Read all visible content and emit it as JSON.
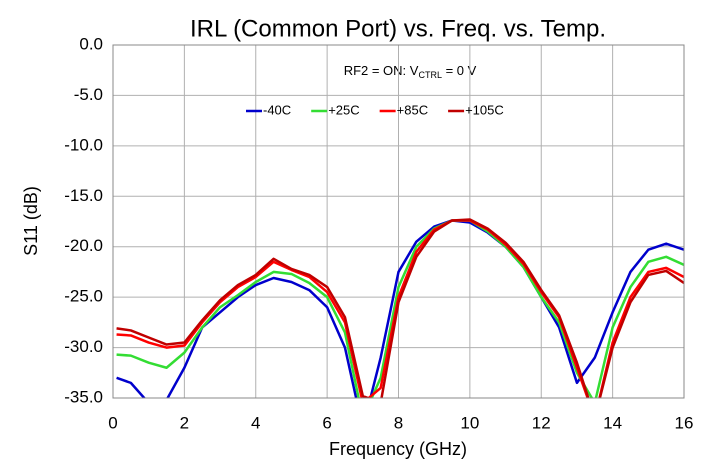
{
  "chart_data": {
    "type": "line",
    "title": "IRL (Common Port) vs. Freq. vs. Temp.",
    "annotation": {
      "text": "RF2 = ON: V",
      "sub": "CTRL",
      "after": " = 0 V"
    },
    "xlabel": "Frequency (GHz)",
    "ylabel": "S11 (dB)",
    "x": [
      0.1,
      0.5,
      1,
      1.5,
      2,
      2.5,
      3,
      3.5,
      4,
      4.5,
      5,
      5.5,
      6,
      6.5,
      7,
      7.5,
      8,
      8.5,
      9,
      9.5,
      10,
      10.5,
      11,
      11.5,
      12,
      12.5,
      13,
      13.5,
      14,
      14.5,
      15,
      15.5,
      16
    ],
    "series": [
      {
        "name": "-40C",
        "color": "#0000cc",
        "values": [
          -33,
          -33.5,
          -35.5,
          -35.2,
          -32,
          -28,
          -26.5,
          -25,
          -23.8,
          -23.1,
          -23.5,
          -24.3,
          -26,
          -30,
          -38,
          -31,
          -22.5,
          -19.5,
          -18,
          -17.4,
          -17.6,
          -18.6,
          -20,
          -22,
          -25,
          -28,
          -33.5,
          -31,
          -26.5,
          -22.5,
          -20.3,
          -19.7,
          -20.3
        ]
      },
      {
        "name": "+25C",
        "color": "#33dd33",
        "values": [
          -30.7,
          -30.8,
          -31.5,
          -32,
          -30.5,
          -28,
          -26,
          -24.8,
          -23.5,
          -22.5,
          -22.7,
          -23.6,
          -25,
          -28.5,
          -37,
          -33,
          -24,
          -20,
          -18.2,
          -17.4,
          -17.4,
          -18.5,
          -20,
          -22,
          -25,
          -27.5,
          -32.5,
          -35.5,
          -28,
          -24,
          -21.5,
          -21,
          -21.8
        ]
      },
      {
        "name": "+85C",
        "color": "#ff0000",
        "values": [
          -28.7,
          -28.8,
          -29.5,
          -30,
          -29.8,
          -27.5,
          -25.5,
          -24,
          -23,
          -21.5,
          -22.3,
          -23,
          -24.5,
          -27.5,
          -35.5,
          -34,
          -25,
          -20.5,
          -18.3,
          -17.4,
          -17.4,
          -18.3,
          -19.8,
          -21.7,
          -24.5,
          -27,
          -32,
          -37,
          -29.5,
          -25,
          -22.5,
          -22.1,
          -23
        ]
      },
      {
        "name": "+105C",
        "color": "#c00000",
        "values": [
          -28.1,
          -28.3,
          -29,
          -29.7,
          -29.5,
          -27.3,
          -25.3,
          -23.8,
          -22.8,
          -21.2,
          -22.2,
          -22.8,
          -24,
          -27,
          -34.8,
          -35.5,
          -25.5,
          -21,
          -18.5,
          -17.4,
          -17.3,
          -18.2,
          -19.6,
          -21.5,
          -24.3,
          -26.8,
          -31.5,
          -37,
          -30,
          -25.5,
          -22.8,
          -22.4,
          -23.6
        ]
      }
    ],
    "xlim": [
      0,
      16
    ],
    "xticks": [
      0,
      2,
      4,
      6,
      8,
      10,
      12,
      14,
      16
    ],
    "ylim": [
      -35,
      0
    ],
    "yticks": [
      {
        "value": 0,
        "label": "0.0"
      },
      {
        "value": -5,
        "label": "-5.0"
      },
      {
        "value": -10,
        "label": "-10.0"
      },
      {
        "value": -15,
        "label": "-15.0"
      },
      {
        "value": -20,
        "label": "-20.0"
      },
      {
        "value": -25,
        "label": "-25.0"
      },
      {
        "value": -30,
        "label": "-30.0"
      },
      {
        "value": -35,
        "label": "-35.0"
      }
    ],
    "grid": true,
    "legend": "top"
  }
}
